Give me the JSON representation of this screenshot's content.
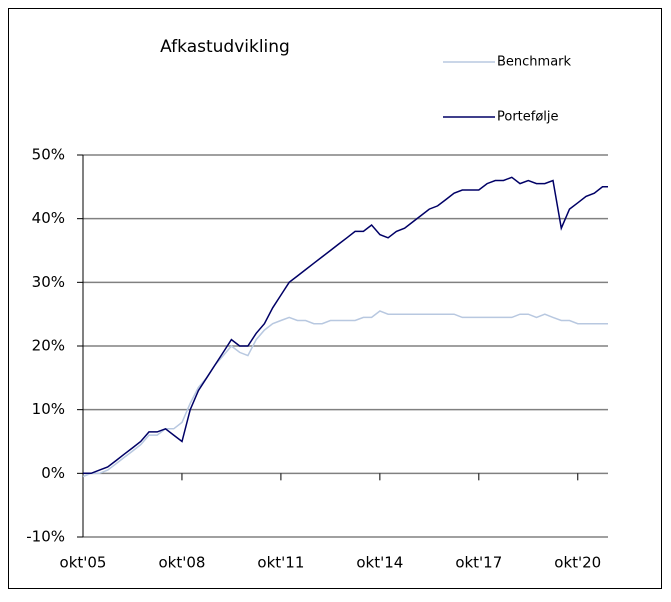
{
  "chart_data": {
    "type": "line",
    "title": "Afkastudvikling",
    "x": [
      "2005-10",
      "2006-01",
      "2006-04",
      "2006-07",
      "2006-10",
      "2007-01",
      "2007-04",
      "2007-07",
      "2007-10",
      "2008-01",
      "2008-04",
      "2008-07",
      "2008-10",
      "2009-01",
      "2009-04",
      "2009-07",
      "2009-10",
      "2010-01",
      "2010-04",
      "2010-07",
      "2010-10",
      "2011-01",
      "2011-04",
      "2011-07",
      "2011-10",
      "2012-01",
      "2012-04",
      "2012-07",
      "2012-10",
      "2013-01",
      "2013-04",
      "2013-07",
      "2013-10",
      "2014-01",
      "2014-04",
      "2014-07",
      "2014-10",
      "2015-01",
      "2015-04",
      "2015-07",
      "2015-10",
      "2016-01",
      "2016-04",
      "2016-07",
      "2016-10",
      "2017-01",
      "2017-04",
      "2017-07",
      "2017-10",
      "2018-01",
      "2018-04",
      "2018-07",
      "2018-10",
      "2019-01",
      "2019-04",
      "2019-07",
      "2019-10",
      "2020-01",
      "2020-04",
      "2020-07",
      "2020-10",
      "2021-01",
      "2021-04",
      "2021-07",
      "2021-09"
    ],
    "series": [
      {
        "name": "Benchmark",
        "color": "#b8c8e0",
        "values": [
          -0.5,
          0,
          0,
          0.5,
          1.5,
          2.5,
          3.5,
          4.5,
          6,
          6,
          7,
          7,
          8,
          11,
          13.5,
          15,
          17,
          18.5,
          20,
          19,
          18.5,
          21,
          22.5,
          23.5,
          24,
          24.5,
          24,
          24,
          23.5,
          23.5,
          24,
          24,
          24,
          24,
          24.5,
          24.5,
          25.5,
          25,
          25,
          25,
          25,
          25,
          25,
          25,
          25,
          25,
          24.5,
          24.5,
          24.5,
          24.5,
          24.5,
          24.5,
          24.5,
          25,
          25,
          24.5,
          25,
          24.5,
          24,
          24,
          23.5,
          23.5,
          23.5,
          23.5,
          23.5
        ]
      },
      {
        "name": "Portefølje",
        "color": "#000066",
        "values": [
          0,
          0,
          0.5,
          1,
          2,
          3,
          4,
          5,
          6.5,
          6.5,
          7,
          6,
          5,
          10,
          13,
          15,
          17,
          19,
          21,
          20,
          20,
          22,
          23.5,
          26,
          28,
          30,
          31,
          32,
          33,
          34,
          35,
          36,
          37,
          38,
          38,
          39,
          37.5,
          37,
          38,
          38.5,
          39.5,
          40.5,
          41.5,
          42,
          43,
          44,
          44.5,
          44.5,
          44.5,
          45.5,
          46,
          46,
          46.5,
          45.5,
          46,
          45.5,
          45.5,
          46,
          38.5,
          41.5,
          42.5,
          43.5,
          44,
          45,
          45
        ]
      }
    ],
    "xlim": [
      "2005-10",
      "2021-09"
    ],
    "xticks": [
      {
        "value": "2005-10",
        "label": "okt'05"
      },
      {
        "value": "2008-10",
        "label": "okt'08"
      },
      {
        "value": "2011-10",
        "label": "okt'11"
      },
      {
        "value": "2014-10",
        "label": "okt'14"
      },
      {
        "value": "2017-10",
        "label": "okt'17"
      },
      {
        "value": "2020-10",
        "label": "okt'20"
      }
    ],
    "ylim": [
      -10,
      50
    ],
    "yticks": [
      {
        "value": -10,
        "label": "-10%"
      },
      {
        "value": 0,
        "label": "0%"
      },
      {
        "value": 10,
        "label": "10%"
      },
      {
        "value": 20,
        "label": "20%"
      },
      {
        "value": 30,
        "label": "30%"
      },
      {
        "value": 40,
        "label": "40%"
      },
      {
        "value": 50,
        "label": "50%"
      }
    ],
    "grid": true,
    "legend": "top-right"
  }
}
